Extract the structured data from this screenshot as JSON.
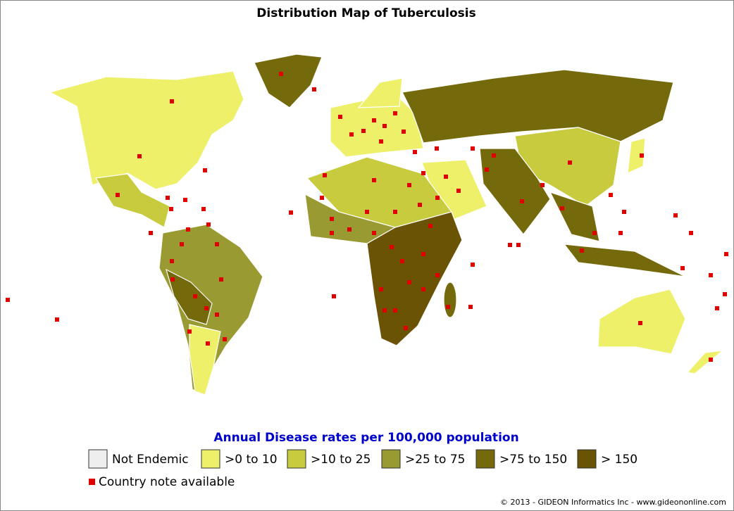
{
  "title": "Distribution Map of Tuberculosis",
  "legend": {
    "title": "Annual Disease rates per 100,000 population",
    "items": [
      {
        "label": "Not Endemic",
        "color": "#eeeeee"
      },
      {
        "label": ">0 to 10",
        "color": "#eef06a"
      },
      {
        "label": ">10 to 25",
        "color": "#c8cb3e"
      },
      {
        "label": ">25 to 75",
        "color": "#9a9a32"
      },
      {
        "label": ">75 to 150",
        "color": "#746a0b"
      },
      {
        "label": "> 150",
        "color": "#6b5306"
      }
    ],
    "note_color": "#e00000",
    "note_label": "Country note available"
  },
  "copyright": "© 2013 - GIDEON Informatics Inc - www.gideononline.com"
}
